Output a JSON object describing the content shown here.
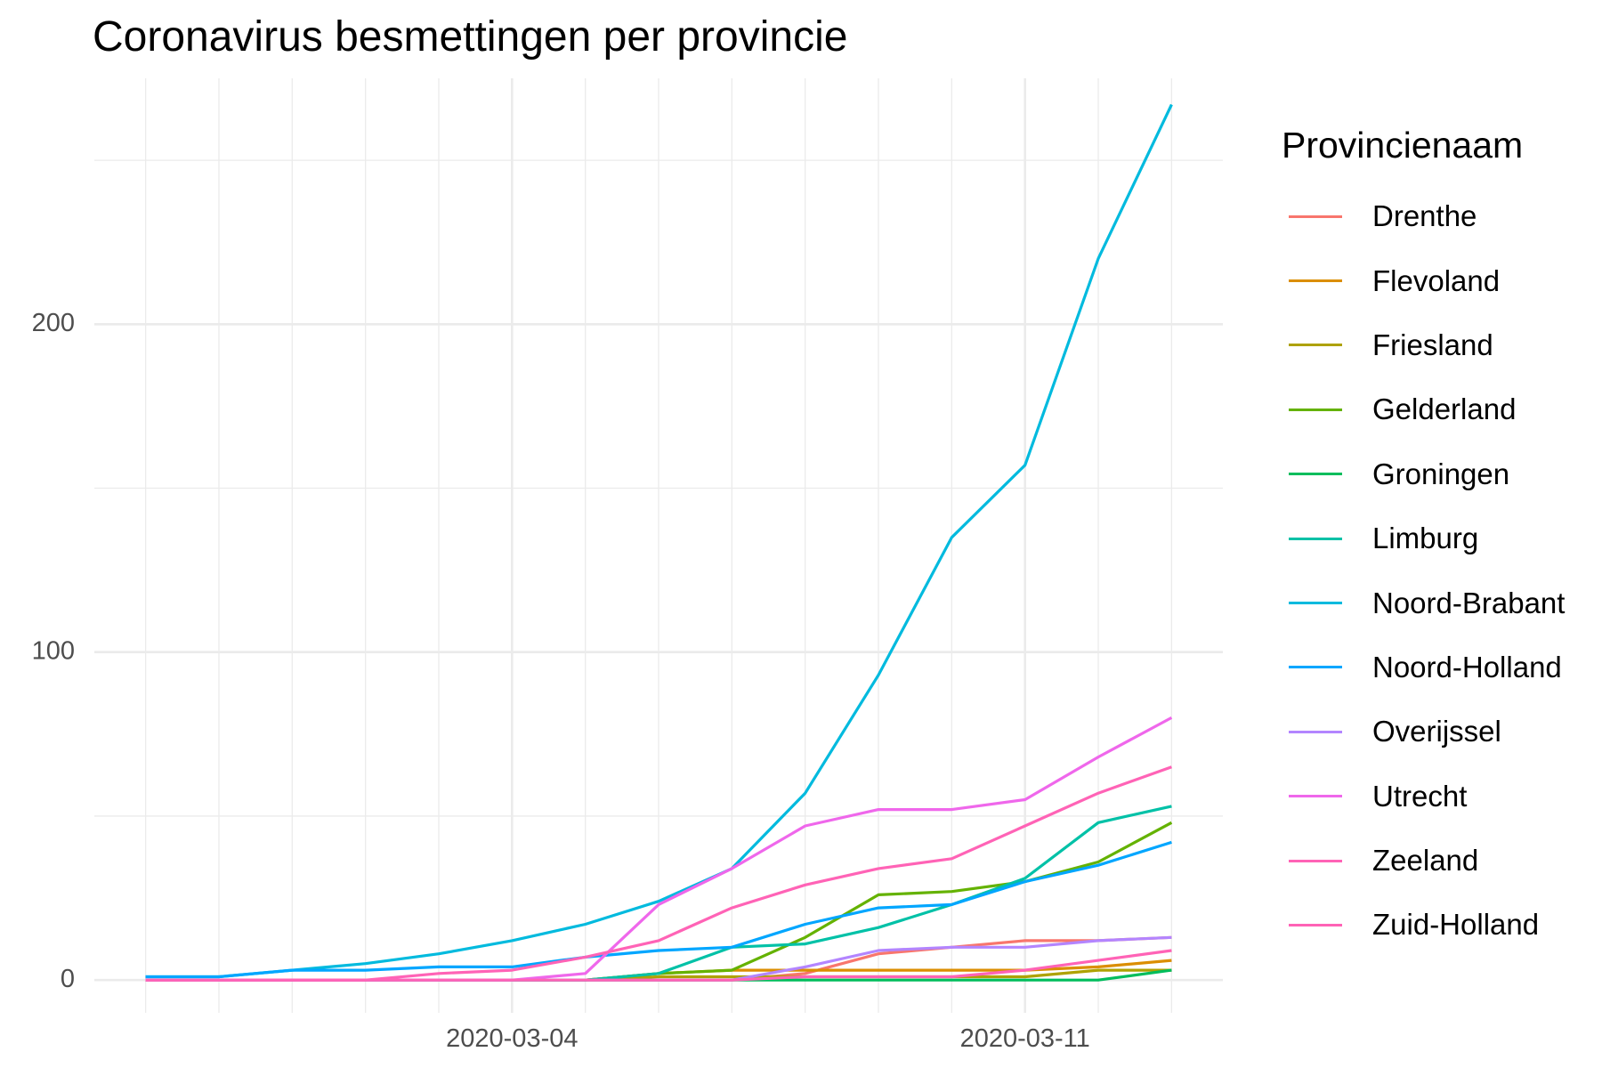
{
  "chart_data": {
    "type": "line",
    "title": "Coronavirus besmettingen per provincie",
    "xlabel": "",
    "ylabel": "",
    "x": [
      "2020-02-28",
      "2020-02-29",
      "2020-03-01",
      "2020-03-02",
      "2020-03-03",
      "2020-03-04",
      "2020-03-05",
      "2020-03-06",
      "2020-03-07",
      "2020-03-08",
      "2020-03-09",
      "2020-03-10",
      "2020-03-11",
      "2020-03-12",
      "2020-03-13"
    ],
    "x_ticks": [
      "2020-03-04",
      "2020-03-11"
    ],
    "y_ticks": [
      0,
      100,
      200
    ],
    "ylim": [
      -10,
      275
    ],
    "grid": true,
    "legend_title": "Provincienaam",
    "legend_position": "right",
    "series": [
      {
        "name": "Drenthe",
        "color": "#F8766D",
        "values": [
          0,
          0,
          0,
          0,
          0,
          0,
          0,
          0,
          0,
          2,
          8,
          10,
          12,
          12,
          13
        ]
      },
      {
        "name": "Flevoland",
        "color": "#DB8E00",
        "values": [
          0,
          0,
          0,
          0,
          0,
          0,
          0,
          2,
          3,
          3,
          3,
          3,
          3,
          4,
          6
        ]
      },
      {
        "name": "Friesland",
        "color": "#AEA200",
        "values": [
          0,
          0,
          0,
          0,
          0,
          0,
          0,
          1,
          1,
          1,
          1,
          1,
          1,
          3,
          3
        ]
      },
      {
        "name": "Gelderland",
        "color": "#64B200",
        "values": [
          0,
          0,
          0,
          0,
          0,
          0,
          0,
          2,
          3,
          13,
          26,
          27,
          30,
          36,
          48
        ]
      },
      {
        "name": "Groningen",
        "color": "#00BD5C",
        "values": [
          0,
          0,
          0,
          0,
          0,
          0,
          0,
          0,
          0,
          0,
          0,
          0,
          0,
          0,
          3
        ]
      },
      {
        "name": "Limburg",
        "color": "#00C1A7",
        "values": [
          0,
          0,
          0,
          0,
          0,
          0,
          0,
          2,
          10,
          11,
          16,
          23,
          31,
          48,
          53
        ]
      },
      {
        "name": "Noord-Brabant",
        "color": "#00BADE",
        "values": [
          1,
          1,
          3,
          5,
          8,
          12,
          17,
          24,
          34,
          57,
          93,
          135,
          157,
          220,
          267
        ]
      },
      {
        "name": "Noord-Holland",
        "color": "#00A6FF",
        "values": [
          1,
          1,
          3,
          3,
          4,
          4,
          7,
          9,
          10,
          17,
          22,
          23,
          30,
          35,
          42
        ]
      },
      {
        "name": "Overijssel",
        "color": "#B385FF",
        "values": [
          0,
          0,
          0,
          0,
          0,
          0,
          0,
          0,
          0,
          4,
          9,
          10,
          10,
          12,
          13
        ]
      },
      {
        "name": "Utrecht",
        "color": "#EF67EB",
        "values": [
          0,
          0,
          0,
          0,
          0,
          0,
          2,
          23,
          34,
          47,
          52,
          52,
          55,
          68,
          80
        ]
      },
      {
        "name": "Zeeland",
        "color": "#FF63B6",
        "values": [
          0,
          0,
          0,
          0,
          0,
          0,
          0,
          0,
          0,
          1,
          1,
          1,
          3,
          6,
          9
        ]
      },
      {
        "name": "Zuid-Holland",
        "color": "#FF63B6",
        "values": [
          0,
          0,
          0,
          0,
          2,
          3,
          7,
          12,
          22,
          29,
          34,
          37,
          47,
          57,
          65
        ]
      }
    ]
  }
}
